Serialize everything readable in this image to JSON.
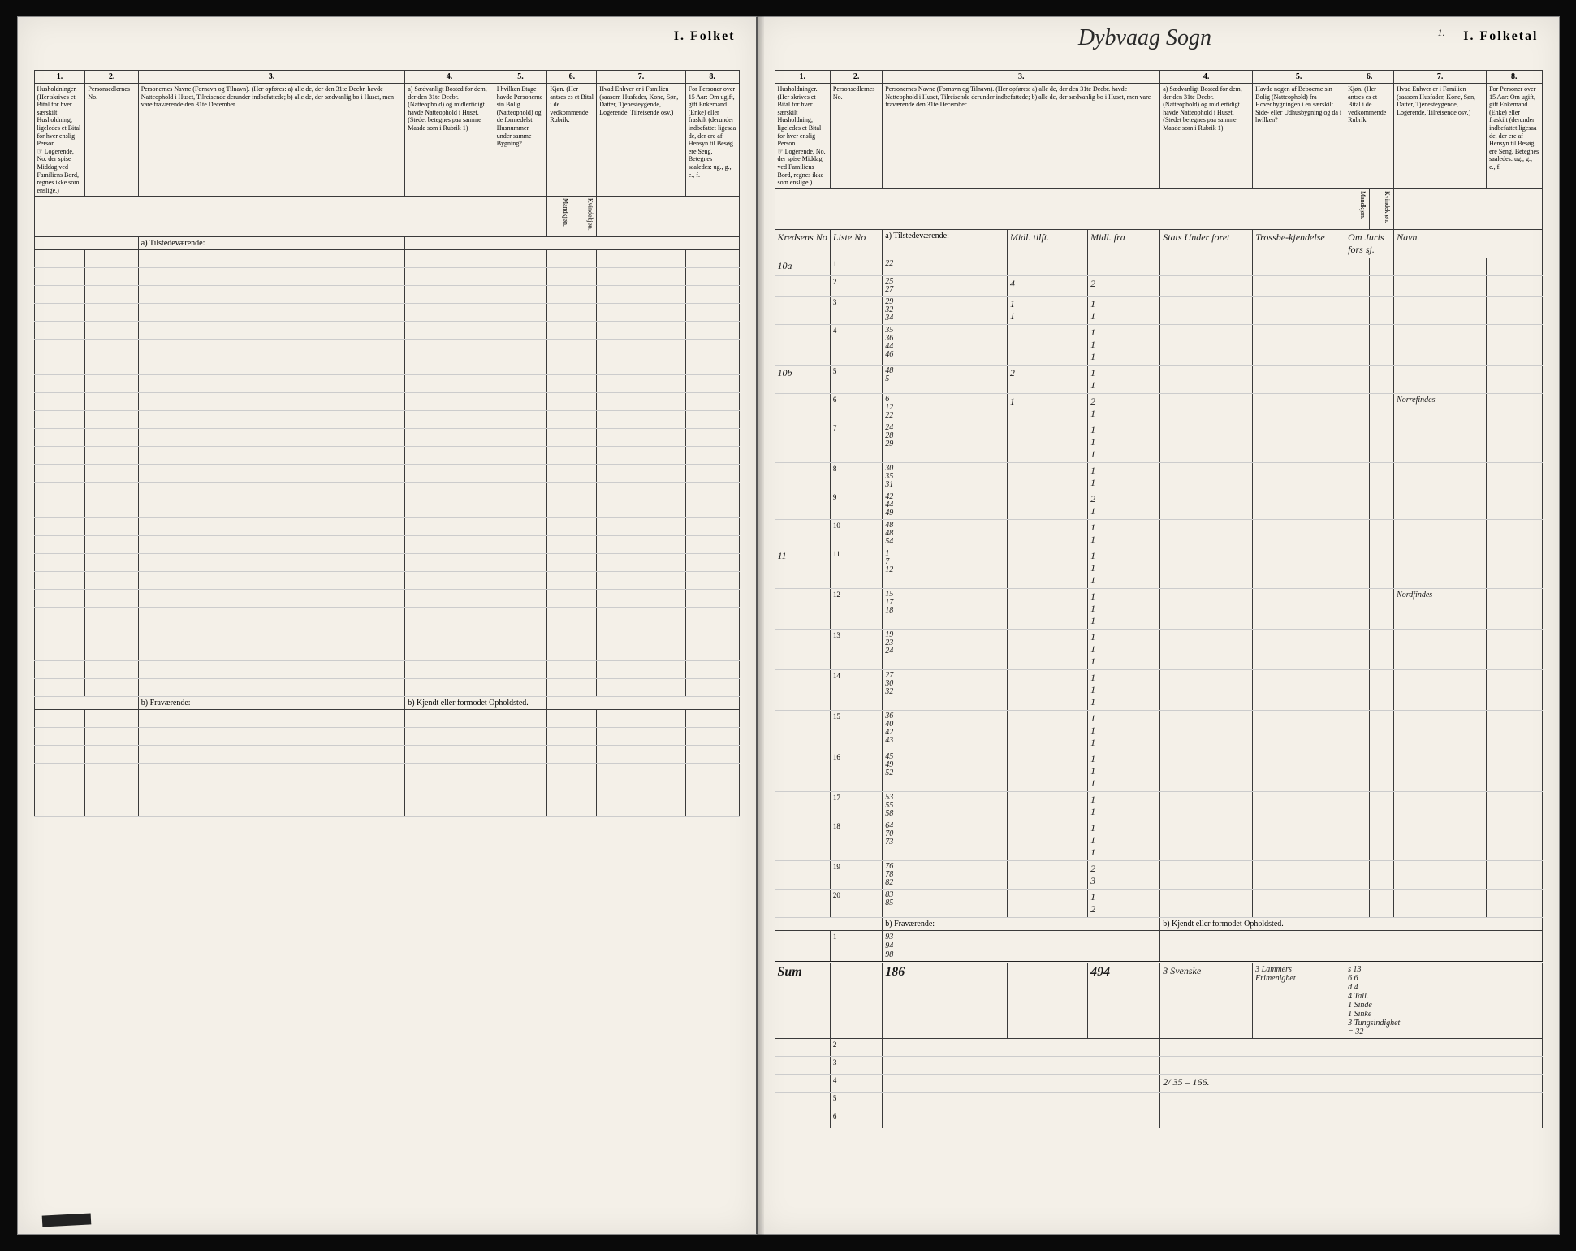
{
  "header": {
    "folketLabel": "I. Folket",
    "folketalLabel": "I. Folketal",
    "handwrittenTitle": "Dybvaag Sogn",
    "pageNumber": "1."
  },
  "columnNumbers": [
    "1.",
    "2.",
    "3.",
    "4.",
    "5.",
    "6.",
    "7.",
    "8."
  ],
  "columnHeaders": {
    "col1": "Husholdninger.\n(Her skrives et Bital for hver særskilt Husholdning; ligeledes et Bital for hver enslig Person.",
    "col1note": "☞ Logerende, No. der spise Middag ved Familiens Bord, regnes ikke som enslige.)",
    "col2": "Personsedlernes No.",
    "col3": "Personernes Navne (Fornavn og Tilnavn).\n(Her opføres:\na) alle de, der den 31te Decbr. havde Natteophold i Huset, Tilreisende derunder indbefattede;\nb) alle de, der sædvanlig bo i Huset, men vare fraværende den 31te December.",
    "col4": "a) Sædvanligt Bosted for dem, der den 31te Decbr. (Natteophold) og midlertidigt havde Natteophold i Huset. (Stedet betegnes paa samme Maade som i Rubrik 1)",
    "col5": "I hvilken Etage havde Personerne sin Bolig (Natteophold) og de formedelst Husnummer under samme Bygning?",
    "col5b": "Havde nogen af Beboerne sin Bolig (Natteophold) fra Hovedbygningen i en særskilt Side- eller Udhusbygning og da i hvilken?",
    "col6": "Kjøn.\n(Her antses es et Bital i de vedkommende Rubrik.",
    "col6a": "Mandkjøn.",
    "col6b": "Kvindekjøn.",
    "col7": "Hvad Enhver er i Familien\n(saasom Husfader, Kone, Søn, Datter, Tjenesteygende, Logerende, Tilreisende osv.)",
    "col8": "For Personer over 15 Aar: Om ugift, gift Enkemand (Enke) eller fraskilt (derunder indbefattet ligesaa de, der ere af Hensyn til Besøg ere Seng.\nBetegnes saaledes:\nug., g., e., f."
  },
  "sectionLabels": {
    "tilstedA": "a) Tilstedeværende:",
    "fravB": "b) Fraværende:",
    "bostedB": "b) Kjendt eller formodet Opholdsted."
  },
  "rightPage": {
    "headerCols": {
      "kreds": "Kredsens No",
      "liste": "Liste No",
      "tilstede": "a) Tilstedeværende:",
      "midlT": "Midl. tilft.",
      "midlF": "Midl. fra",
      "stat": "Stats Under foret",
      "tross": "Trossbe-kjendelse",
      "om": "Om Juris fors sj.",
      "navn": "Navn."
    },
    "rows": [
      {
        "kreds": "10a",
        "liste": "1",
        "tally": "22",
        "c1": "",
        "c2": "",
        "c3": "",
        "c4": "",
        "note": ""
      },
      {
        "kreds": "",
        "liste": "2",
        "tally": "25\n27",
        "c1": "4",
        "c2": "2",
        "c3": "",
        "c4": "",
        "note": ""
      },
      {
        "kreds": "",
        "liste": "3",
        "tally": "29\n32\n34",
        "c1": "1\n1",
        "c2": "1\n1",
        "c3": "",
        "c4": "",
        "note": ""
      },
      {
        "kreds": "",
        "liste": "4",
        "tally": "35\n36\n44\n46",
        "c1": "",
        "c2": "1\n1\n1",
        "c3": "",
        "c4": "",
        "note": ""
      },
      {
        "kreds": "10b",
        "liste": "5",
        "tally": "48\n5",
        "c1": "2",
        "c2": "1\n1",
        "c3": "",
        "c4": "",
        "note": ""
      },
      {
        "kreds": "",
        "liste": "6",
        "tally": "6\n12\n22",
        "c1": "1",
        "c2": "2\n1",
        "c3": "",
        "c4": "",
        "note": "Norrefindes"
      },
      {
        "kreds": "",
        "liste": "7",
        "tally": "24\n28\n29",
        "c1": "",
        "c2": "1\n1\n1",
        "c3": "",
        "c4": "",
        "note": ""
      },
      {
        "kreds": "",
        "liste": "8",
        "tally": "30\n35\n31",
        "c1": "",
        "c2": "1\n1",
        "c3": "",
        "c4": "",
        "note": ""
      },
      {
        "kreds": "",
        "liste": "9",
        "tally": "42\n44\n49",
        "c1": "",
        "c2": "2\n1",
        "c3": "",
        "c4": "",
        "note": ""
      },
      {
        "kreds": "",
        "liste": "10",
        "tally": "48\n48\n54",
        "c1": "",
        "c2": "1\n1",
        "c3": "",
        "c4": "",
        "note": ""
      },
      {
        "kreds": "11",
        "liste": "11",
        "tally": "1\n7\n12",
        "c1": "",
        "c2": "1\n1\n1",
        "c3": "",
        "c4": "",
        "note": ""
      },
      {
        "kreds": "",
        "liste": "12",
        "tally": "15\n17\n18",
        "c1": "",
        "c2": "1\n1\n1",
        "c3": "",
        "c4": "",
        "note": "Nordfindes"
      },
      {
        "kreds": "",
        "liste": "13",
        "tally": "19\n23\n24",
        "c1": "",
        "c2": "1\n1\n1",
        "c3": "",
        "c4": "",
        "note": ""
      },
      {
        "kreds": "",
        "liste": "14",
        "tally": "27\n30\n32",
        "c1": "",
        "c2": "1\n1\n1",
        "c3": "",
        "c4": "",
        "note": ""
      },
      {
        "kreds": "",
        "liste": "15",
        "tally": "36\n40\n42\n43",
        "c1": "",
        "c2": "1\n1\n1",
        "c3": "",
        "c4": "",
        "note": ""
      },
      {
        "kreds": "",
        "liste": "16",
        "tally": "45\n49\n52",
        "c1": "",
        "c2": "1\n1\n1",
        "c3": "",
        "c4": "",
        "note": ""
      },
      {
        "kreds": "",
        "liste": "17",
        "tally": "53\n55\n58",
        "c1": "",
        "c2": "1\n1",
        "c3": "",
        "c4": "",
        "note": ""
      },
      {
        "kreds": "",
        "liste": "18",
        "tally": "64\n70\n73",
        "c1": "",
        "c2": "1\n1\n1",
        "c3": "",
        "c4": "",
        "note": ""
      },
      {
        "kreds": "",
        "liste": "19",
        "tally": "76\n78\n82",
        "c1": "",
        "c2": "2\n3",
        "c3": "",
        "c4": "",
        "note": ""
      },
      {
        "kreds": "",
        "liste": "20",
        "tally": "83\n85",
        "c1": "",
        "c2": "1\n2",
        "c3": "",
        "c4": "",
        "note": ""
      }
    ],
    "fravRows": [
      {
        "liste": "1",
        "tally": "93\n94\n98"
      },
      {
        "liste": "2"
      },
      {
        "liste": "3"
      },
      {
        "liste": "4"
      },
      {
        "liste": "5"
      },
      {
        "liste": "6"
      }
    ],
    "sumRow": {
      "label": "Sum",
      "v1": "186",
      "v2": "494",
      "v3": "3 Svenske",
      "v4": "3 Lammers\nFrimenighet",
      "v5": "s 13\n6 6\nd 4\n4 Tall.\n1 Sinde\n1 Sinke\n3 Tungsindighet\n= 32"
    },
    "calcNote": "2/ 35 – 166."
  }
}
